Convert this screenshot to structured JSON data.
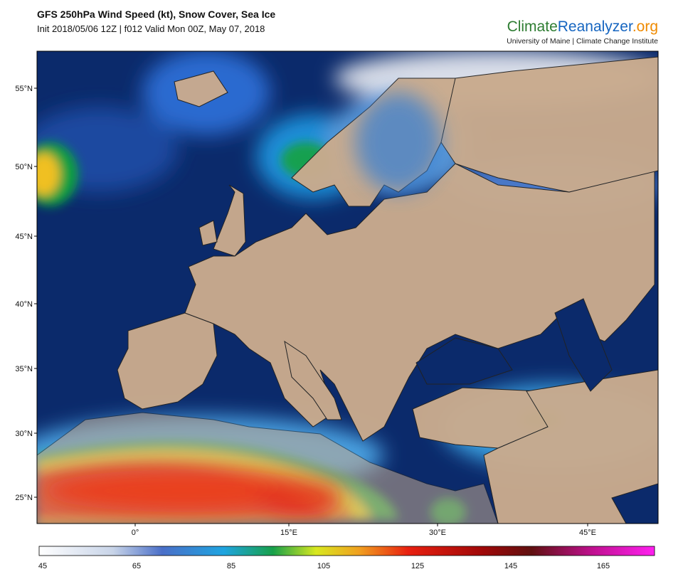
{
  "header": {
    "title": "GFS 250hPa Wind Speed (kt), Snow Cover, Sea Ice",
    "subtitle": "Init 2018/05/06 12Z | f012 Valid Mon 00Z, May 07, 2018"
  },
  "logo": {
    "name_part1": "Climate",
    "name_part2": "Reanalyzer",
    "name_part3": ".org",
    "tagline": "University of Maine | Climate Change Institute"
  },
  "map": {
    "lat_labels": [
      "55°N",
      "50°N",
      "45°N",
      "40°N",
      "35°N",
      "30°N",
      "25°N"
    ],
    "lon_labels": [
      "0°",
      "15°E",
      "30°E",
      "45°E"
    ]
  },
  "colorbar": {
    "labels": [
      "45",
      "65",
      "85",
      "105",
      "125",
      "145",
      "165"
    ]
  }
}
